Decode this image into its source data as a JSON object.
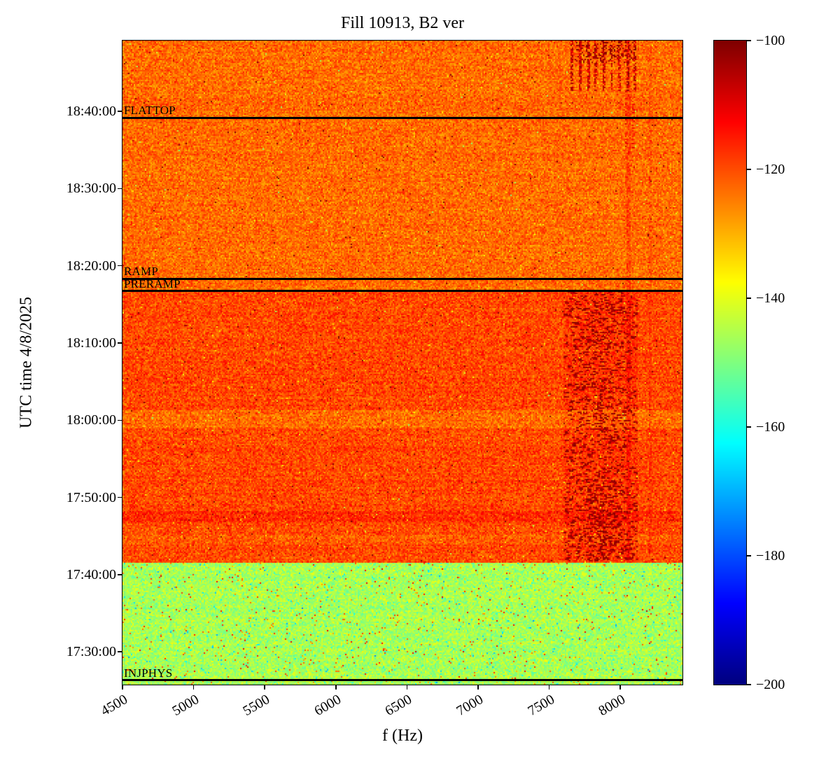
{
  "chart_data": {
    "type": "heatmap",
    "variant": "spectrogram",
    "title": "Fill 10913, B2 ver",
    "xlabel": "f (Hz)",
    "ylabel": "UTC time 4/8/2025",
    "xlim": [
      4500,
      8437
    ],
    "x_ticks": [
      4500,
      5000,
      5500,
      6000,
      6500,
      7000,
      7500,
      8000
    ],
    "y_ticks": [
      "17:30:00",
      "17:40:00",
      "17:50:00",
      "18:00:00",
      "18:10:00",
      "18:20:00",
      "18:30:00",
      "18:40:00"
    ],
    "time_start": "17:25:45",
    "time_end": "18:49:10",
    "grid": false,
    "colorbar": {
      "colormap": "jet",
      "vmin": -200,
      "vmax": -100,
      "tick_values": [
        -100,
        -120,
        -140,
        -160,
        -180,
        -200
      ],
      "tick_labels": [
        "−100",
        "−120",
        "−140",
        "−160",
        "−180",
        "−200"
      ]
    },
    "annotations": [
      {
        "id": "flattop",
        "label": "FLATTOP",
        "time": "18:39:10"
      },
      {
        "id": "ramp",
        "label": "RAMP",
        "time": "18:18:20"
      },
      {
        "id": "preramp",
        "label": "PRERAMP",
        "time": "18:16:45"
      },
      {
        "id": "injphys",
        "label": "INJPHYS",
        "time": "17:26:20"
      }
    ],
    "regions": [
      {
        "name": "injphys-low-noise-floor",
        "t_start": "17:25:45",
        "t_end": "17:41:30",
        "mean_db": -146.0,
        "noise_db": 4.5,
        "hot_speckle_prob": 0.02,
        "cold_speckle_prob": 0.015
      },
      {
        "name": "injection-plateau-high",
        "t_start": "17:41:30",
        "t_end": "18:16:45",
        "mean_db": -119.5,
        "noise_db": 4.5,
        "hot_speckle_prob": 0.003,
        "cold_speckle_prob": 0.004
      },
      {
        "name": "ramp-flattop",
        "t_start": "18:16:45",
        "t_end": "18:49:10",
        "mean_db": -123.0,
        "noise_db": 4.5,
        "hot_speckle_prob": 0.003,
        "cold_speckle_prob": 0.004
      }
    ],
    "features": {
      "row_bands": [
        {
          "t_center": "18:00:10",
          "half_s": 70,
          "offset_db": -3.5
        },
        {
          "t_center": "17:47:30",
          "half_s": 45,
          "offset_db": 2.5
        },
        {
          "t_center": "17:44:30",
          "half_s": 40,
          "offset_db": -2.0
        }
      ],
      "vertical_lines": [
        {
          "f": 8060,
          "half": 14,
          "boost_db": 3.5
        },
        {
          "f": 8210,
          "half": 9,
          "boost_db": 2.0
        }
      ],
      "broadband_streaks": {
        "f_min": 7600,
        "f_max": 8120,
        "f_center": 7860,
        "t_start": "17:41:40",
        "t_end": "18:16:45",
        "peak_db": -100,
        "dense_before": "17:52:00"
      },
      "top_streaks": {
        "t_start": "18:42:40",
        "t_darkest": "18:46:20",
        "freqs": [
          7660,
          7715,
          7775,
          7830,
          7885,
          7940,
          7995,
          8050,
          8100
        ]
      },
      "faint_upper_streaks": {
        "t_start": "18:35:00",
        "freqs": [
          8040,
          8095
        ]
      }
    },
    "seed": 10913
  }
}
